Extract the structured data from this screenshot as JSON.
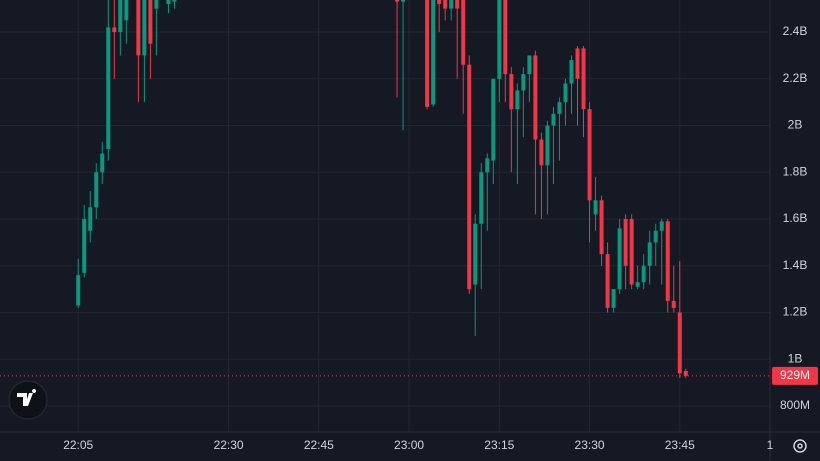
{
  "chart_data": {
    "type": "candlestick",
    "x": [
      "22:05",
      "22:06",
      "22:07",
      "22:08",
      "22:09",
      "22:10",
      "22:11",
      "22:12",
      "22:13",
      "22:15",
      "22:16",
      "22:17",
      "22:18",
      "22:20",
      "22:21",
      "22:58",
      "22:59",
      "23:03",
      "23:04",
      "23:05",
      "23:06",
      "23:07",
      "23:08",
      "23:09",
      "23:10",
      "23:11",
      "23:12",
      "23:13",
      "23:14",
      "23:15",
      "23:16",
      "23:17",
      "23:18",
      "23:19",
      "23:20",
      "23:21",
      "23:22",
      "23:23",
      "23:24",
      "23:25",
      "23:26",
      "23:27",
      "23:28",
      "23:29",
      "23:30",
      "23:31",
      "23:32",
      "23:33",
      "23:34",
      "23:35",
      "23:36",
      "23:37",
      "23:38",
      "23:39",
      "23:40",
      "23:41",
      "23:42",
      "23:43",
      "23:44",
      "23:45",
      "23:46"
    ],
    "open": [
      1230000000.0,
      1370000000.0,
      1550000000.0,
      1650000000.0,
      1800000000.0,
      1900000000.0,
      2420000000.0,
      2400000000.0,
      2450000000.0,
      2550000000.0,
      2300000000.0,
      2550000000.0,
      2500000000.0,
      2520000000.0,
      2530000000.0,
      2550000000.0,
      2530000000.0,
      2550000000.0,
      2090000000.0,
      2550000000.0,
      2550000000.0,
      2500000000.0,
      2550000000.0,
      2550000000.0,
      2260000000.0,
      1320000000.0,
      1580000000.0,
      1800000000.0,
      1850000000.0,
      2200000000.0,
      2550000000.0,
      2220000000.0,
      2070000000.0,
      2150000000.0,
      2220000000.0,
      2300000000.0,
      1940000000.0,
      1830000000.0,
      2000000000.0,
      2050000000.0,
      2100000000.0,
      2180000000.0,
      2330000000.0,
      2330000000.0,
      2070000000.0,
      1620000000.0,
      1680000000.0,
      1450000000.0,
      1220000000.0,
      1300000000.0,
      1600000000.0,
      1600000000.0,
      1310000000.0,
      1330000000.0,
      1400000000.0,
      1500000000.0,
      1550000000.0,
      1590000000.0,
      1250000000.0,
      1200000000.0,
      950000000.0
    ],
    "high": [
      1430000000.0,
      1660000000.0,
      1720000000.0,
      1840000000.0,
      1930000000.0,
      2550000000.0,
      2550000000.0,
      2550000000.0,
      2550000000.0,
      2550000000.0,
      2550000000.0,
      2550000000.0,
      2550000000.0,
      2550000000.0,
      2550000000.0,
      2550000000.0,
      2550000000.0,
      2550000000.0,
      2550000000.0,
      2550000000.0,
      2550000000.0,
      2550000000.0,
      2550000000.0,
      2550000000.0,
      2300000000.0,
      1620000000.0,
      1840000000.0,
      1880000000.0,
      2200000000.0,
      2550000000.0,
      2550000000.0,
      2250000000.0,
      2180000000.0,
      2250000000.0,
      2300000000.0,
      2320000000.0,
      1970000000.0,
      2020000000.0,
      2080000000.0,
      2120000000.0,
      2200000000.0,
      2300000000.0,
      2340000000.0,
      2340000000.0,
      2100000000.0,
      1780000000.0,
      1700000000.0,
      1500000000.0,
      1300000000.0,
      1600000000.0,
      1620000000.0,
      1620000000.0,
      1400000000.0,
      1450000000.0,
      1550000000.0,
      1580000000.0,
      1600000000.0,
      1600000000.0,
      1400000000.0,
      1420000000.0,
      960000000.0
    ],
    "low": [
      1220000000.0,
      1350000000.0,
      1500000000.0,
      1600000000.0,
      1750000000.0,
      1850000000.0,
      2200000000.0,
      2300000000.0,
      2350000000.0,
      2100000000.0,
      2100000000.0,
      2200000000.0,
      2300000000.0,
      2480000000.0,
      2500000000.0,
      2120000000.0,
      1980000000.0,
      2070000000.0,
      2080000000.0,
      2400000000.0,
      2450000000.0,
      2450000000.0,
      2200000000.0,
      2050000000.0,
      1280000000.0,
      1100000000.0,
      1300000000.0,
      1550000000.0,
      1750000000.0,
      2100000000.0,
      2100000000.0,
      1800000000.0,
      1750000000.0,
      1950000000.0,
      2100000000.0,
      1620000000.0,
      1600000000.0,
      1620000000.0,
      1750000000.0,
      1850000000.0,
      2000000000.0,
      2050000000.0,
      2000000000.0,
      1950000000.0,
      1500000000.0,
      1550000000.0,
      1400000000.0,
      1200000000.0,
      1200000000.0,
      1280000000.0,
      1300000000.0,
      1300000000.0,
      1300000000.0,
      1300000000.0,
      1320000000.0,
      1400000000.0,
      1320000000.0,
      1200000000.0,
      1200000000.0,
      920000000.0,
      920000000.0
    ],
    "close": [
      1360000000.0,
      1600000000.0,
      1650000000.0,
      1800000000.0,
      1880000000.0,
      2420000000.0,
      2400000000.0,
      2550000000.0,
      2550000000.0,
      2300000000.0,
      2550000000.0,
      2350000000.0,
      2550000000.0,
      2540000000.0,
      2550000000.0,
      2530000000.0,
      2540000000.0,
      2080000000.0,
      2550000000.0,
      2520000000.0,
      2500000000.0,
      2550000000.0,
      2500000000.0,
      2260000000.0,
      1300000000.0,
      1580000000.0,
      1800000000.0,
      1860000000.0,
      2200000000.0,
      2550000000.0,
      2220000000.0,
      2070000000.0,
      2150000000.0,
      2220000000.0,
      2300000000.0,
      1940000000.0,
      1830000000.0,
      2000000000.0,
      2050000000.0,
      2100000000.0,
      2180000000.0,
      2280000000.0,
      2200000000.0,
      2070000000.0,
      1680000000.0,
      1680000000.0,
      1450000000.0,
      1220000000.0,
      1300000000.0,
      1560000000.0,
      1400000000.0,
      1320000000.0,
      1330000000.0,
      1400000000.0,
      1500000000.0,
      1550000000.0,
      1590000000.0,
      1250000000.0,
      1220000000.0,
      940000000.0,
      929000000.0
    ],
    "up_color": "#089981",
    "down_color": "#f23645",
    "ylim": [
      689000000,
      2537000000
    ],
    "yticks": [
      {
        "value": 800000000,
        "label": "800M"
      },
      {
        "value": 1000000000,
        "label": "1B"
      },
      {
        "value": 1200000000,
        "label": "1.2B"
      },
      {
        "value": 1400000000,
        "label": "1.4B"
      },
      {
        "value": 1600000000,
        "label": "1.6B"
      },
      {
        "value": 1800000000,
        "label": "1.8B"
      },
      {
        "value": 2000000000,
        "label": "2B"
      },
      {
        "value": 2200000000,
        "label": "2.2B"
      },
      {
        "value": 2400000000,
        "label": "2.4B"
      }
    ],
    "xlim": [
      "21:52",
      "00:00"
    ],
    "xticks": [
      "22:05",
      "22:30",
      "22:45",
      "23:00",
      "23:15",
      "23:30",
      "23:45",
      {
        "value": "00:00",
        "label": "1"
      }
    ],
    "grid": true,
    "price_line": {
      "value": 929000000,
      "label": "929M"
    }
  }
}
